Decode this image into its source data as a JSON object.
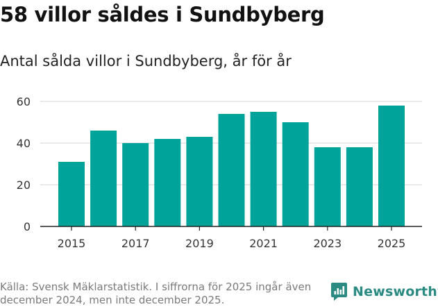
{
  "header": {
    "title": "58 villor såldes i Sundbyberg",
    "subtitle": "Antal sålda villor i Sundbyberg, år för år"
  },
  "chart_data": {
    "type": "bar",
    "title": "58 villor såldes i Sundbyberg",
    "subtitle": "Antal sålda villor i Sundbyberg, år för år",
    "categories": [
      "2015",
      "2016",
      "2017",
      "2018",
      "2019",
      "2020",
      "2021",
      "2022",
      "2023",
      "2024",
      "2025"
    ],
    "values": [
      31,
      46,
      40,
      42,
      43,
      54,
      55,
      50,
      38,
      38,
      58
    ],
    "x_tick_labels": [
      "2015",
      "2017",
      "2019",
      "2021",
      "2023",
      "2025"
    ],
    "y_ticks": [
      0,
      20,
      40,
      60
    ],
    "ylim": [
      0,
      62
    ],
    "xlabel": "",
    "ylabel": "",
    "grid": true,
    "bar_color": "#00a39a"
  },
  "footer": {
    "source": "Källa: Svensk Mäklarstatistik. I siffrorna för 2025 ingår även december 2024, men inte december 2025.",
    "brand": "Newsworthy",
    "brand_icon": "newsworthy-logo-icon",
    "brand_color": "#2b8a82"
  }
}
